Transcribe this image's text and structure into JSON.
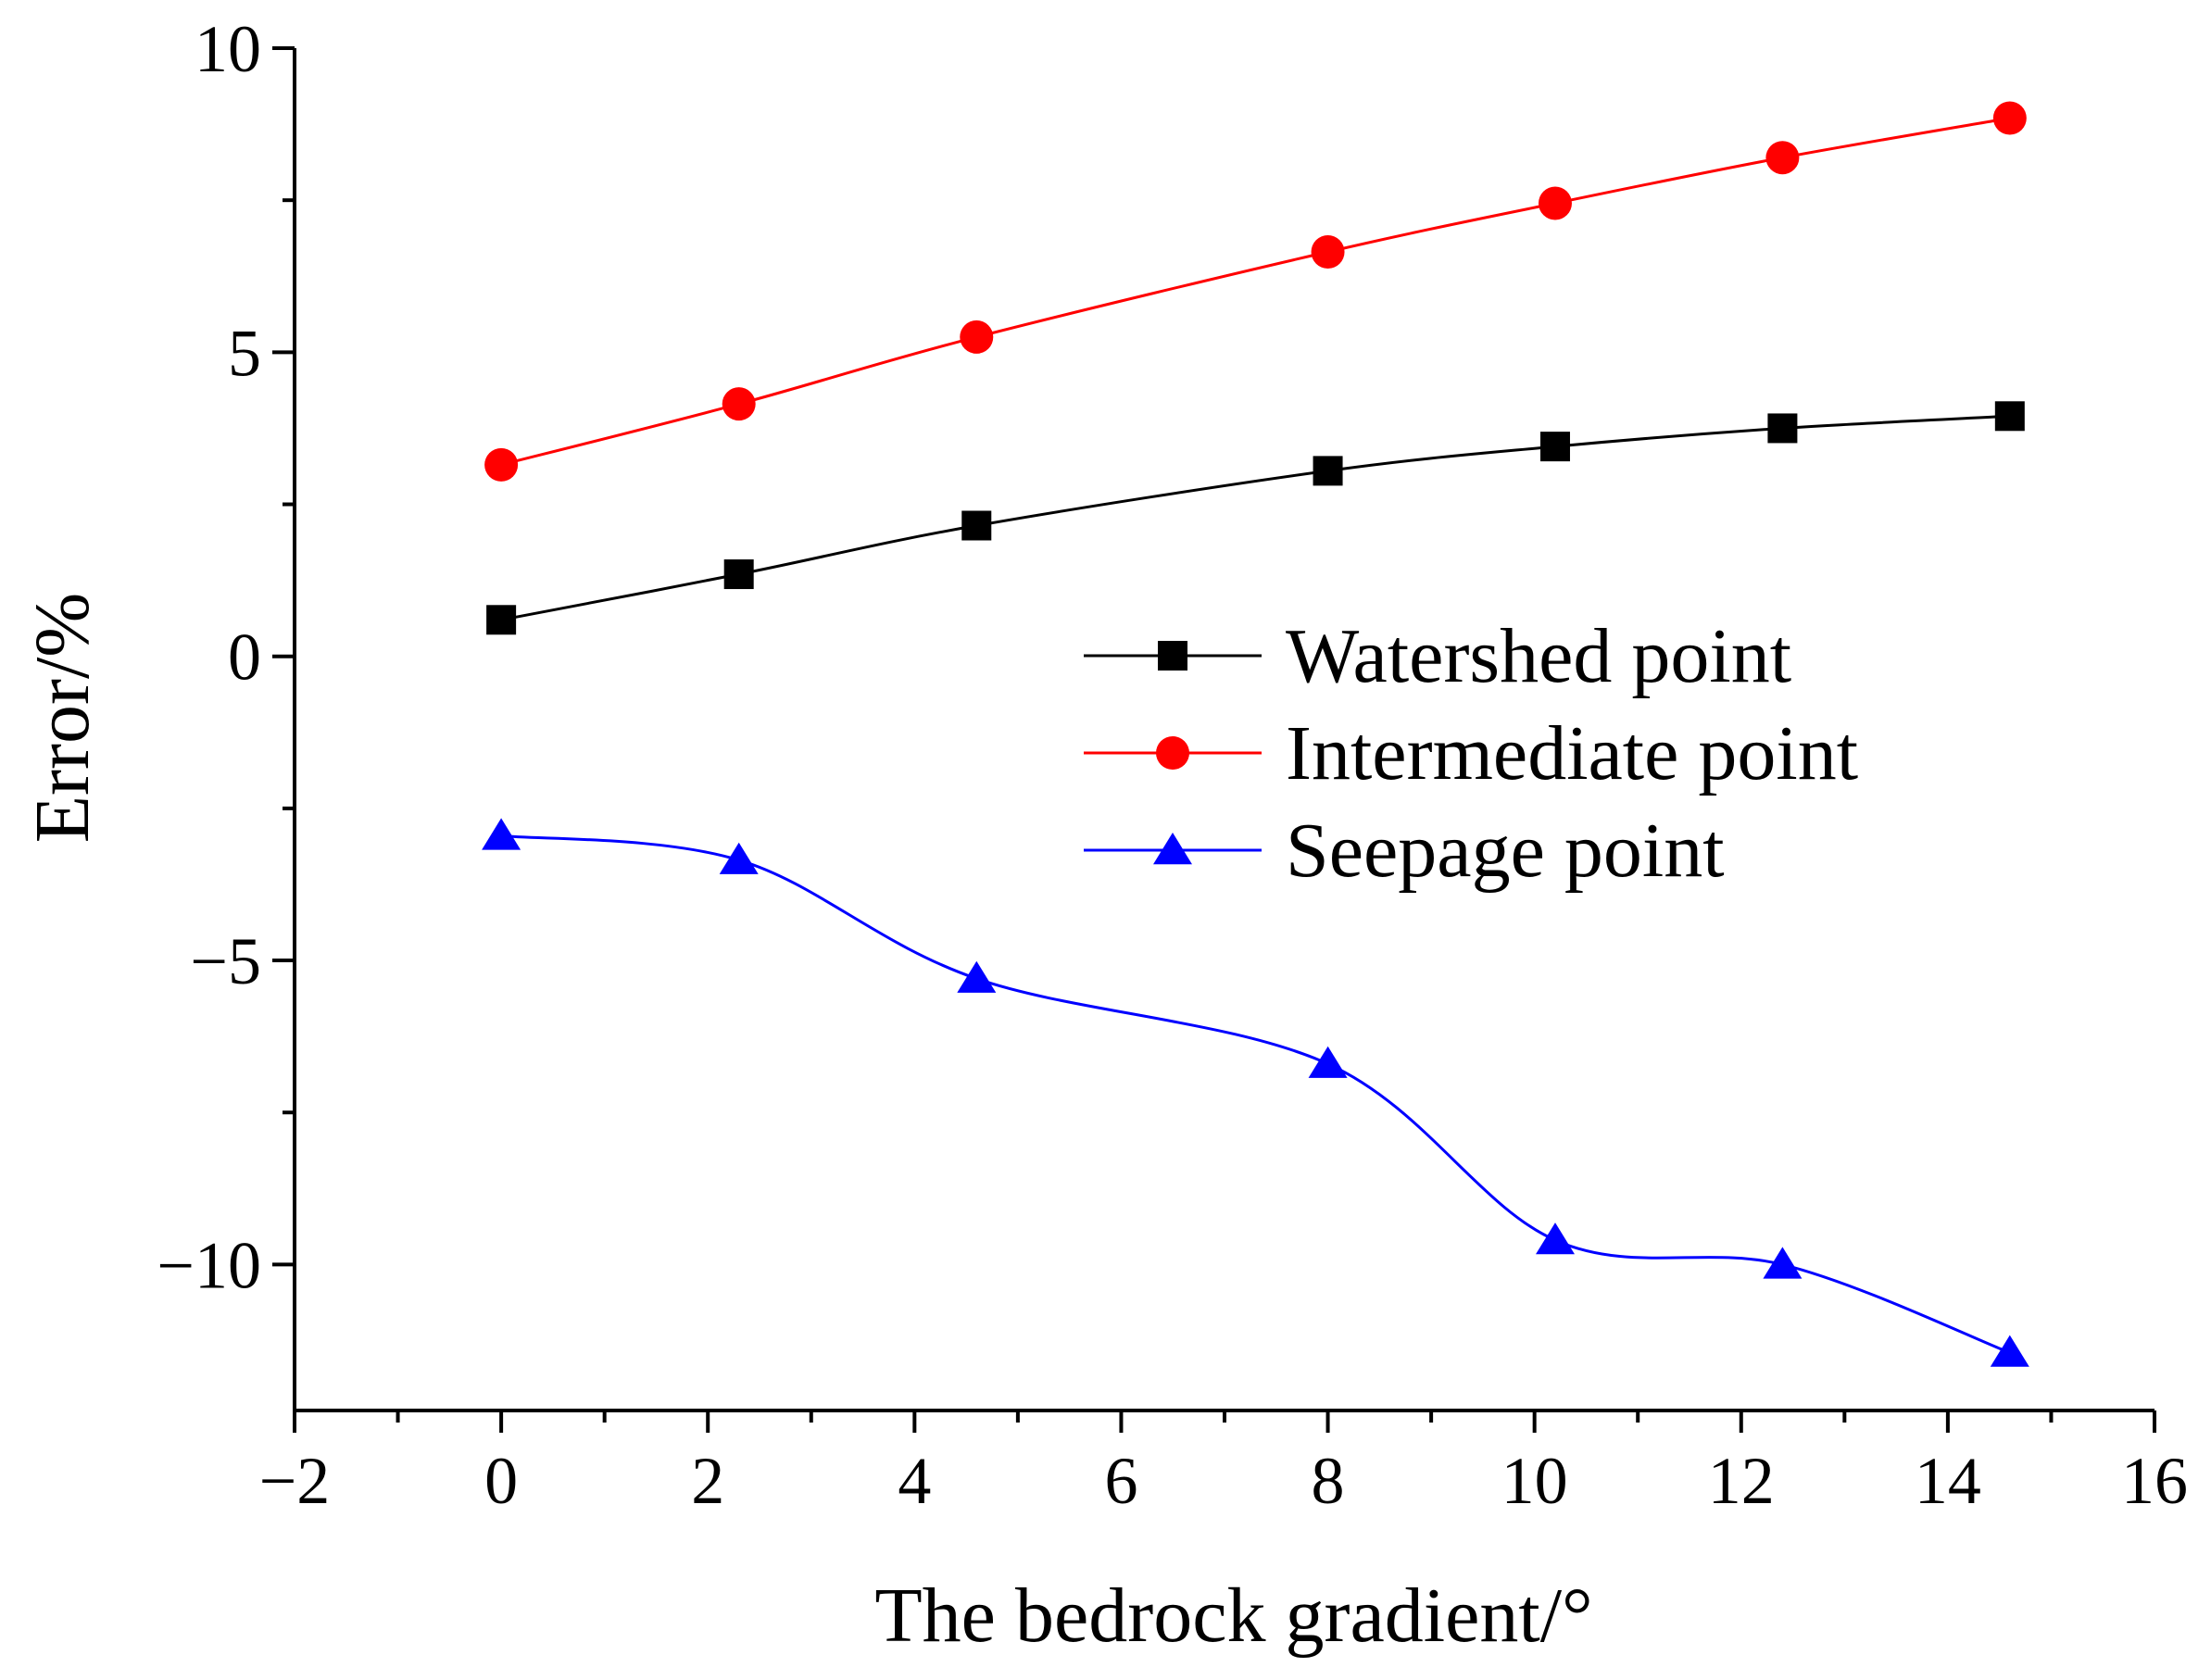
{
  "chart_data": {
    "type": "line",
    "title": "",
    "xlabel": "The bedrock gradient/°",
    "ylabel": "Error/%",
    "xlim": [
      -2,
      16
    ],
    "ylim": [
      -12.4,
      10
    ],
    "x_major_ticks": [
      -2,
      0,
      2,
      4,
      6,
      8,
      10,
      12,
      14,
      16
    ],
    "x_tick_labels": [
      "−2",
      "0",
      "2",
      "4",
      "6",
      "8",
      "10",
      "12",
      "14",
      "16"
    ],
    "x_minor_ticks": [
      -1,
      1,
      3,
      5,
      7,
      9,
      11,
      13,
      15
    ],
    "y_major_ticks": [
      10,
      5,
      0,
      -5,
      -10
    ],
    "y_tick_labels": [
      "10",
      "5",
      "0",
      "−5",
      "−10"
    ],
    "y_minor_ticks": [
      7.5,
      2.5,
      -2.5,
      -7.5
    ],
    "grid": false,
    "legend_position": "center-right",
    "x": [
      0,
      2.3,
      4.6,
      8,
      10.2,
      12.4,
      14.6
    ],
    "series": [
      {
        "name": "Watershed point",
        "color": "#000000",
        "marker": "square",
        "values": [
          0.6,
          1.35,
          2.15,
          3.05,
          3.45,
          3.75,
          3.95
        ]
      },
      {
        "name": "Intermediate point",
        "color": "#ff0000",
        "marker": "circle",
        "values": [
          3.15,
          4.15,
          5.25,
          6.65,
          7.45,
          8.2,
          8.85
        ]
      },
      {
        "name": "Seepage point",
        "color": "#0000ff",
        "marker": "triangle",
        "values": [
          -2.95,
          -3.35,
          -5.3,
          -6.7,
          -9.6,
          -10.0,
          -11.45
        ]
      }
    ]
  }
}
